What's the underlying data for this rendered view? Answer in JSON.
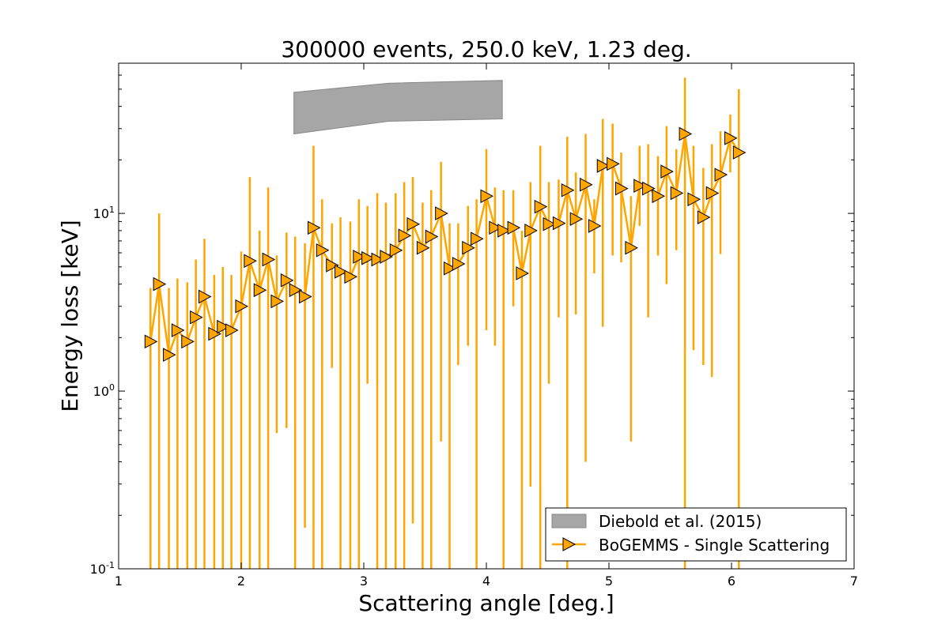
{
  "chart_data": {
    "type": "scatter",
    "title": "300000 events, 250.0 keV, 1.23 deg.",
    "xlabel": "Scattering angle [deg.]",
    "ylabel": "Energy loss [keV]",
    "xlim": [
      1,
      7
    ],
    "ylim": [
      0.1,
      70
    ],
    "yscale": "log",
    "x_ticks": [
      "1",
      "2",
      "3",
      "4",
      "5",
      "6",
      "7"
    ],
    "y_ticks": [
      {
        "value": 0.1,
        "base": "10",
        "exp": "-1"
      },
      {
        "value": 1,
        "base": "10",
        "exp": "0"
      },
      {
        "value": 10,
        "base": "10",
        "exp": "1"
      }
    ],
    "legend": {
      "position": "lower-right",
      "entries": [
        "Diebold et al. (2015)",
        "BoGEMMS - Single Scattering"
      ]
    },
    "colors": {
      "series": "#ffa500",
      "band_fill": "#a6a6a6",
      "band_edge": "#888888"
    },
    "band": {
      "name": "Diebold et al. (2015)",
      "x": [
        2.43,
        3.2,
        4.13
      ],
      "lower": [
        28,
        33,
        34
      ],
      "upper": [
        48,
        54,
        56
      ]
    },
    "series": {
      "name": "BoGEMMS - Single Scattering",
      "x": [
        1.26,
        1.33,
        1.41,
        1.48,
        1.56,
        1.63,
        1.7,
        1.78,
        1.85,
        1.92,
        2.0,
        2.07,
        2.15,
        2.22,
        2.29,
        2.37,
        2.44,
        2.52,
        2.59,
        2.66,
        2.74,
        2.81,
        2.89,
        2.96,
        3.03,
        3.11,
        3.18,
        3.26,
        3.33,
        3.4,
        3.48,
        3.55,
        3.63,
        3.7,
        3.77,
        3.85,
        3.92,
        4.0,
        4.07,
        4.14,
        4.22,
        4.29,
        4.36,
        4.44,
        4.51,
        4.59,
        4.66,
        4.73,
        4.81,
        4.88,
        4.95,
        5.03,
        5.1,
        5.18,
        5.25,
        5.32,
        5.4,
        5.47,
        5.55,
        5.62,
        5.69,
        5.77,
        5.84,
        5.91,
        5.99,
        6.06
      ],
      "y": [
        1.9,
        4.0,
        1.6,
        2.2,
        1.9,
        2.6,
        3.4,
        2.1,
        2.3,
        2.2,
        3.0,
        5.4,
        3.7,
        5.5,
        3.2,
        4.2,
        3.7,
        3.4,
        8.3,
        6.2,
        5.1,
        4.7,
        4.4,
        5.7,
        5.6,
        5.5,
        5.7,
        6.2,
        7.5,
        8.7,
        6.4,
        7.4,
        10.0,
        4.9,
        5.2,
        6.4,
        7.2,
        12.5,
        8.3,
        8.0,
        8.3,
        4.6,
        8.0,
        10.9,
        8.7,
        8.8,
        13.5,
        9.3,
        14.5,
        8.5,
        18.5,
        19.0,
        13.8,
        6.4,
        14.3,
        13.8,
        12.5,
        17.2,
        13.0,
        28.0,
        12.0,
        9.5,
        13.0,
        16.5,
        26.5,
        22.0
      ],
      "err_low": [
        0.1,
        0.1,
        0.1,
        0.1,
        0.1,
        0.1,
        0.1,
        0.1,
        0.1,
        0.1,
        0.1,
        0.1,
        0.1,
        0.1,
        0.58,
        0.62,
        0.1,
        0.17,
        0.1,
        0.1,
        1.35,
        0.1,
        0.1,
        0.1,
        1.1,
        0.1,
        0.1,
        0.1,
        0.1,
        0.18,
        0.1,
        0.1,
        0.52,
        0.1,
        1.4,
        1.8,
        0.1,
        2.2,
        1.8,
        0.1,
        3.0,
        0.1,
        0.29,
        0.1,
        1.1,
        2.6,
        0.1,
        2.7,
        0.4,
        4.6,
        2.3,
        5.8,
        5.3,
        0.52,
        8.5,
        2.6,
        5.8,
        4.0,
        6.2,
        0.1,
        1.7,
        1.4,
        1.2,
        5.9,
        17.0,
        0.1
      ],
      "err_high": [
        3.8,
        10.0,
        3.8,
        4.3,
        4.1,
        5.5,
        7.2,
        4.5,
        5.0,
        4.5,
        6.1,
        16.0,
        8.0,
        14.0,
        5.8,
        7.8,
        7.4,
        6.8,
        24.0,
        12.0,
        8.8,
        9.5,
        9.0,
        12.0,
        11.0,
        13.0,
        11.5,
        13.0,
        15.0,
        16.0,
        11.5,
        13.5,
        19.5,
        8.8,
        8.8,
        11.0,
        12.0,
        23.0,
        14.0,
        13.5,
        13.5,
        8.0,
        15.0,
        24.0,
        15.0,
        15.5,
        27.0,
        17.0,
        28.0,
        12.0,
        34.0,
        32.0,
        22.0,
        12.5,
        24.0,
        24.5,
        21.0,
        31.0,
        23.0,
        58.0,
        24.0,
        18.0,
        24.5,
        29.0,
        36.0,
        50.0
      ]
    }
  }
}
